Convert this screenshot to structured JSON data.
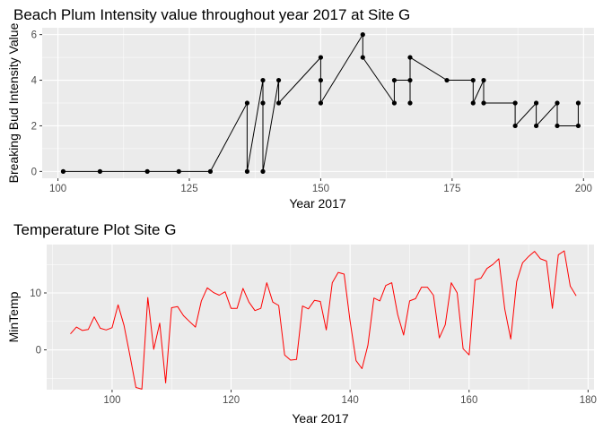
{
  "chart_data": [
    {
      "type": "line",
      "title": "Beach Plum Intensity value throughout year 2017 at Site G",
      "xlabel": "Year 2017",
      "ylabel": "Breaking Bud Intensity Value",
      "xlim": [
        97,
        202
      ],
      "ylim": [
        -0.3,
        6.3
      ],
      "x_ticks": [
        100,
        125,
        150,
        175,
        200
      ],
      "y_ticks": [
        0,
        2,
        4,
        6
      ],
      "grid": true,
      "markers": true,
      "line_color": "#000000",
      "point_color": "#000000",
      "panel_color": "#ebebeb",
      "series": [
        {
          "x": [
            101,
            108,
            117,
            123,
            129,
            136,
            136,
            139,
            139,
            139,
            142,
            142,
            150,
            150,
            150,
            158,
            158,
            164,
            164,
            167,
            167,
            167,
            174,
            179,
            179,
            181,
            181,
            187,
            187,
            191,
            191,
            195,
            195,
            199,
            199
          ],
          "y": [
            0,
            0,
            0,
            0,
            0,
            3,
            0,
            4,
            3,
            0,
            4,
            3,
            5,
            4,
            3,
            6,
            5,
            3,
            4,
            4,
            3,
            5,
            4,
            4,
            3,
            4,
            3,
            3,
            2,
            3,
            2,
            3,
            2,
            2,
            3
          ]
        }
      ]
    },
    {
      "type": "line",
      "title": "Temperature Plot Site G",
      "xlabel": "Year 2017",
      "ylabel": "MinTemp",
      "xlim": [
        89,
        181
      ],
      "ylim": [
        -7,
        18.5
      ],
      "x_ticks": [
        100,
        120,
        140,
        160,
        180
      ],
      "y_ticks": [
        0,
        10
      ],
      "grid": true,
      "markers": false,
      "line_color": "#ff0000",
      "panel_color": "#ebebeb",
      "series": [
        {
          "x": [
            93,
            94,
            95,
            96,
            97,
            98,
            99,
            100,
            101,
            102,
            103,
            104,
            105,
            106,
            107,
            108,
            109,
            110,
            111,
            112,
            113,
            114,
            115,
            116,
            117,
            118,
            119,
            120,
            121,
            122,
            123,
            124,
            125,
            126,
            127,
            128,
            129,
            130,
            131,
            132,
            133,
            134,
            135,
            136,
            137,
            138,
            139,
            140,
            141,
            142,
            143,
            144,
            145,
            146,
            147,
            148,
            149,
            150,
            151,
            152,
            153,
            154,
            155,
            156,
            157,
            158,
            159,
            160,
            161,
            162,
            163,
            164,
            165,
            166,
            167,
            168,
            169,
            170,
            171,
            172,
            173,
            174,
            175,
            176,
            177,
            178
          ],
          "y": [
            2.8,
            4.0,
            3.4,
            3.6,
            5.8,
            3.8,
            3.5,
            3.9,
            7.9,
            4.3,
            -1.0,
            -6.6,
            -6.9,
            9.2,
            0.1,
            4.7,
            -5.8,
            7.4,
            7.6,
            6.0,
            5.0,
            4.0,
            8.6,
            10.9,
            10.1,
            9.6,
            10.2,
            7.3,
            7.3,
            10.8,
            8.4,
            6.9,
            7.3,
            11.8,
            8.4,
            7.8,
            -0.9,
            -1.8,
            -1.7,
            7.7,
            7.2,
            8.7,
            8.5,
            3.5,
            11.8,
            13.6,
            13.3,
            5.0,
            -1.9,
            -3.3,
            0.8,
            9.1,
            8.6,
            11.3,
            11.8,
            6.2,
            2.6,
            8.6,
            9.0,
            11.0,
            11.0,
            9.6,
            2.1,
            4.4,
            11.8,
            10.0,
            0.2,
            -0.9,
            12.3,
            12.6,
            14.3,
            15.0,
            16.0,
            7.2,
            1.9,
            12.0,
            15.3,
            16.4,
            17.3,
            16.0,
            15.6,
            7.3,
            16.7,
            17.4,
            11.2,
            9.5
          ]
        }
      ]
    }
  ]
}
